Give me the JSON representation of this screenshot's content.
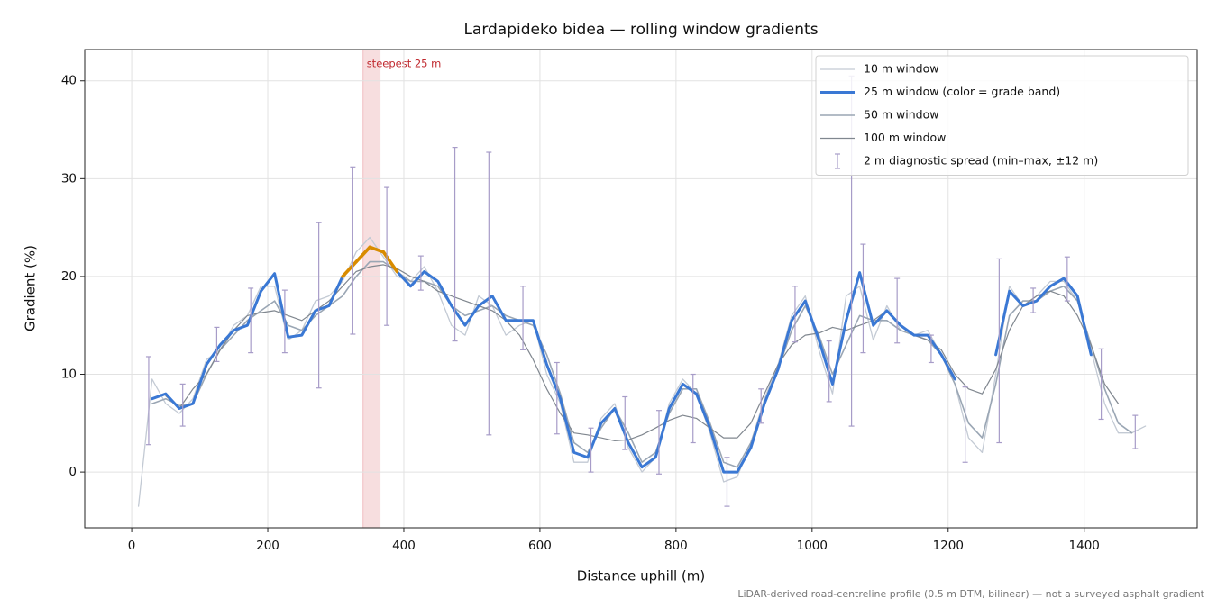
{
  "chart_data": {
    "type": "line",
    "title": "Lardapideko bidea — rolling window gradients",
    "xlabel": "Distance uphill (m)",
    "ylabel": "Gradient (%)",
    "footnote": "LiDAR-derived road-centreline profile (0.5 m DTM, bilinear) — not a surveyed asphalt gradient",
    "xlim": [
      -69,
      1566
    ],
    "ylim": [
      -5.7,
      43.2
    ],
    "xticks": [
      0,
      200,
      400,
      600,
      800,
      1000,
      1200,
      1400
    ],
    "yticks": [
      0,
      10,
      20,
      30,
      40
    ],
    "grid": true,
    "legend": "upper right",
    "x": [
      10,
      30,
      50,
      70,
      90,
      110,
      130,
      150,
      170,
      190,
      210,
      230,
      250,
      270,
      290,
      310,
      330,
      350,
      370,
      390,
      410,
      430,
      450,
      470,
      490,
      510,
      530,
      550,
      570,
      590,
      610,
      630,
      650,
      670,
      690,
      710,
      730,
      750,
      770,
      790,
      810,
      830,
      850,
      870,
      890,
      910,
      930,
      950,
      970,
      990,
      1010,
      1030,
      1050,
      1070,
      1090,
      1110,
      1130,
      1150,
      1170,
      1190,
      1210,
      1230,
      1250,
      1270,
      1290,
      1310,
      1330,
      1350,
      1370,
      1390,
      1410,
      1430,
      1450,
      1470,
      1490
    ],
    "series": [
      {
        "name": "10 m window",
        "color": "#c3cad4",
        "linewidth": 1.3,
        "values": [
          -3.5,
          9.5,
          7.0,
          6.0,
          7.5,
          11.5,
          12.5,
          15.0,
          16.0,
          19.0,
          19.0,
          13.5,
          14.5,
          17.5,
          18.0,
          19.5,
          22.5,
          24.0,
          22.0,
          20.0,
          19.5,
          21.0,
          18.5,
          15.0,
          14.0,
          18.0,
          17.0,
          14.0,
          15.0,
          15.5,
          10.0,
          7.0,
          1.0,
          1.0,
          5.5,
          7.0,
          2.5,
          0.0,
          1.5,
          7.0,
          9.5,
          8.0,
          4.0,
          -1.0,
          -0.5,
          3.0,
          7.5,
          11.0,
          16.0,
          18.0,
          12.5,
          8.0,
          18.0,
          19.0,
          13.5,
          17.0,
          14.5,
          14.0,
          14.5,
          12.0,
          9.0,
          3.5,
          2.0,
          10.0,
          19.0,
          17.0,
          18.0,
          19.5,
          19.5,
          17.5,
          12.5,
          7.0,
          4.0,
          4.0,
          4.7
        ]
      },
      {
        "name": "25 m window (color = grade band)",
        "color": "#3a78d4",
        "linewidth": 3,
        "highlight_above": 20,
        "highlight_color": "#d98c00",
        "values": [
          null,
          7.5,
          8.0,
          6.5,
          7.0,
          11.0,
          13.0,
          14.5,
          15.0,
          18.5,
          20.3,
          13.8,
          14.0,
          16.5,
          17.0,
          20.0,
          21.5,
          23.0,
          22.5,
          20.5,
          19.0,
          20.5,
          19.5,
          17.0,
          15.0,
          17.0,
          18.0,
          15.5,
          15.5,
          15.5,
          11.0,
          7.5,
          2.0,
          1.5,
          5.0,
          6.5,
          3.0,
          0.5,
          1.5,
          6.5,
          9.0,
          8.0,
          4.5,
          0.0,
          0.0,
          2.5,
          7.0,
          10.5,
          15.5,
          17.5,
          13.5,
          9.0,
          15.5,
          20.4,
          15.0,
          16.5,
          15.0,
          14.0,
          14.0,
          12.0,
          9.5,
          null,
          null,
          12.0,
          18.5,
          17.0,
          17.5,
          19.0,
          19.8,
          18.0,
          12.0,
          null,
          null,
          null,
          null
        ]
      },
      {
        "name": "50 m window",
        "color": "#9aa6b4",
        "linewidth": 1.6,
        "values": [
          null,
          7.0,
          7.5,
          6.8,
          7.0,
          10.0,
          12.5,
          14.0,
          15.5,
          16.5,
          17.5,
          15.0,
          14.5,
          16.0,
          17.0,
          18.0,
          20.0,
          21.5,
          21.5,
          20.5,
          19.5,
          19.5,
          19.0,
          17.0,
          16.0,
          16.5,
          17.0,
          16.0,
          15.5,
          15.0,
          12.0,
          8.0,
          3.0,
          2.0,
          4.5,
          6.5,
          4.0,
          1.0,
          2.0,
          6.0,
          8.5,
          8.5,
          5.0,
          1.0,
          0.5,
          3.0,
          7.0,
          10.5,
          14.5,
          17.0,
          14.0,
          10.0,
          13.0,
          16.0,
          15.5,
          15.5,
          14.5,
          14.0,
          13.5,
          12.0,
          9.0,
          5.0,
          3.5,
          9.0,
          16.0,
          17.5,
          17.5,
          18.5,
          19.0,
          17.5,
          13.0,
          8.5,
          5.0,
          4.0,
          null
        ]
      },
      {
        "name": "100 m window",
        "color": "#80878f",
        "linewidth": 1.2,
        "values": [
          null,
          null,
          7.8,
          6.5,
          8.5,
          10.0,
          12.5,
          14.5,
          16.0,
          16.3,
          16.5,
          16.0,
          15.5,
          16.5,
          17.5,
          19.0,
          20.5,
          21.0,
          21.2,
          20.8,
          20.0,
          19.5,
          18.5,
          18.0,
          17.5,
          17.0,
          16.5,
          15.5,
          14.0,
          11.5,
          8.5,
          6.0,
          4.0,
          3.8,
          3.5,
          3.2,
          3.3,
          3.8,
          4.5,
          5.3,
          5.8,
          5.5,
          4.5,
          3.5,
          3.5,
          5.0,
          8.0,
          11.0,
          13.0,
          14.0,
          14.2,
          14.8,
          14.5,
          15.0,
          15.5,
          16.5,
          15.0,
          14.0,
          13.5,
          12.5,
          10.0,
          8.5,
          8.0,
          10.5,
          14.5,
          17.0,
          18.0,
          18.5,
          18.0,
          16.0,
          13.0,
          9.0,
          7.0,
          null,
          null
        ]
      }
    ],
    "errorbars": {
      "name": "2 m diagnostic spread (min–max, ±12 m)",
      "color": "#a79cc8",
      "x": [
        25,
        75,
        125,
        175,
        225,
        275,
        325,
        375,
        425,
        475,
        525,
        575,
        625,
        675,
        725,
        775,
        825,
        875,
        925,
        975,
        1025,
        1058,
        1075,
        1125,
        1175,
        1225,
        1275,
        1325,
        1375,
        1425,
        1475
      ],
      "low": [
        2.8,
        4.7,
        11.3,
        12.2,
        12.2,
        8.6,
        14.1,
        15.0,
        18.6,
        13.4,
        3.8,
        12.5,
        3.9,
        0.0,
        2.3,
        -0.2,
        3.0,
        -3.5,
        5.0,
        13.3,
        7.2,
        4.7,
        12.2,
        13.2,
        11.2,
        1.0,
        3.0,
        16.3,
        17.5,
        5.4,
        2.4
      ],
      "high": [
        11.8,
        9.0,
        14.8,
        18.8,
        18.6,
        25.5,
        31.2,
        29.1,
        22.1,
        33.2,
        32.7,
        19.0,
        11.2,
        4.5,
        7.7,
        6.3,
        10.0,
        1.5,
        8.5,
        19.0,
        13.4,
        40.5,
        23.3,
        19.8,
        14.0,
        8.7,
        21.8,
        18.8,
        22.0,
        12.6,
        5.8
      ]
    },
    "highlight_span": [
      340,
      365
    ],
    "highlight_label": "steepest 25 m",
    "highlight_span_color": "#e07a80"
  }
}
